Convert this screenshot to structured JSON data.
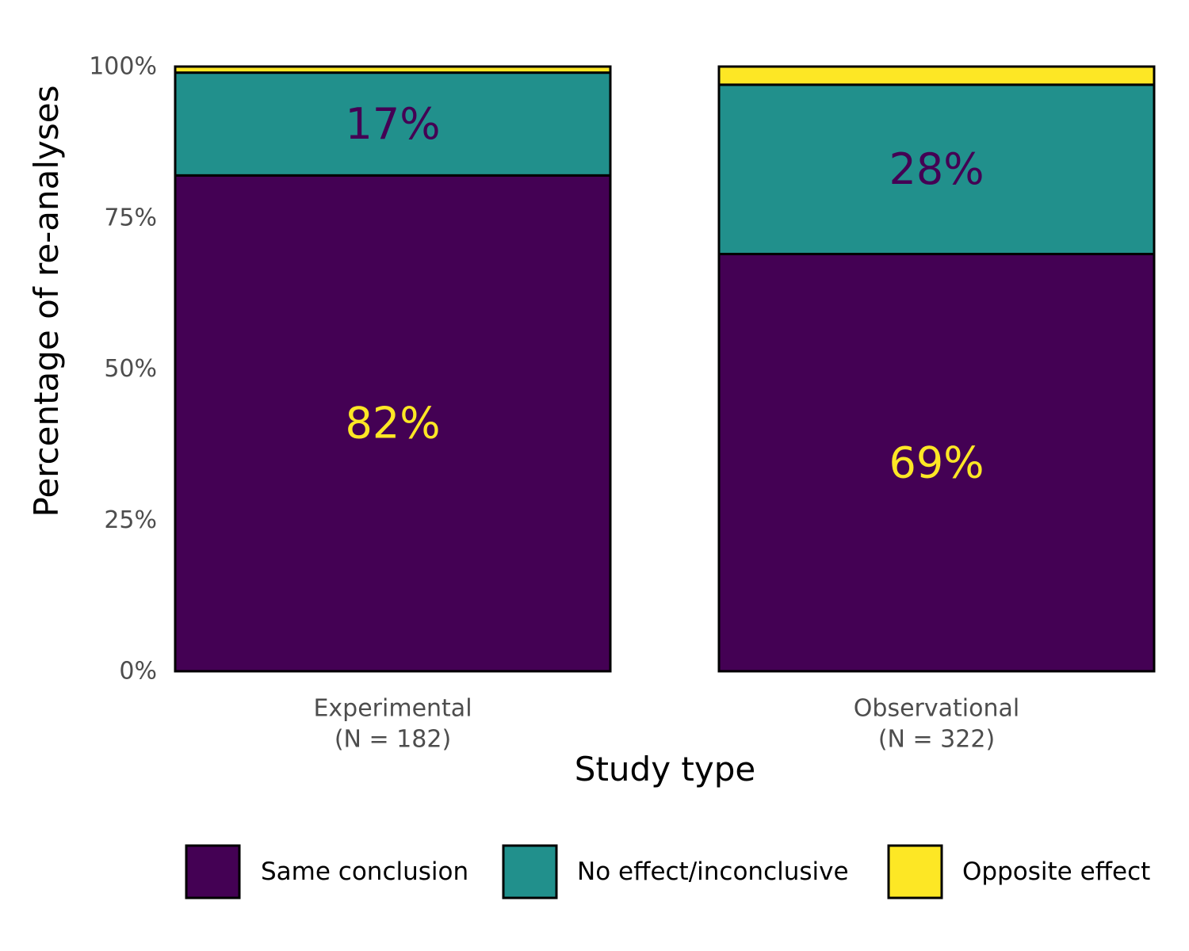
{
  "chart_data": {
    "type": "bar",
    "stacked": true,
    "categories": [
      "Experimental\n(N = 182)",
      "Observational\n(N = 322)"
    ],
    "series": [
      {
        "name": "Same conclusion",
        "color": "#440154",
        "values": [
          82,
          69
        ],
        "labels": [
          "82%",
          "69%"
        ],
        "label_color": "#FDE725"
      },
      {
        "name": "No effect/inconclusive",
        "color": "#21908C",
        "values": [
          17,
          28
        ],
        "labels": [
          "17%",
          "28%"
        ],
        "label_color": "#440154"
      },
      {
        "name": "Opposite effect",
        "color": "#FDE725",
        "values": [
          1,
          3
        ],
        "labels": [
          "",
          ""
        ],
        "label_color": "#000000"
      }
    ],
    "xlabel": "Study type",
    "ylabel": "Percentage of re-analyses",
    "ylim": [
      0,
      100
    ],
    "yticks": [
      0,
      25,
      50,
      75,
      100
    ],
    "ytick_labels": [
      "0%",
      "25%",
      "50%",
      "75%",
      "100%"
    ],
    "grid": false,
    "legend_position": "bottom"
  }
}
